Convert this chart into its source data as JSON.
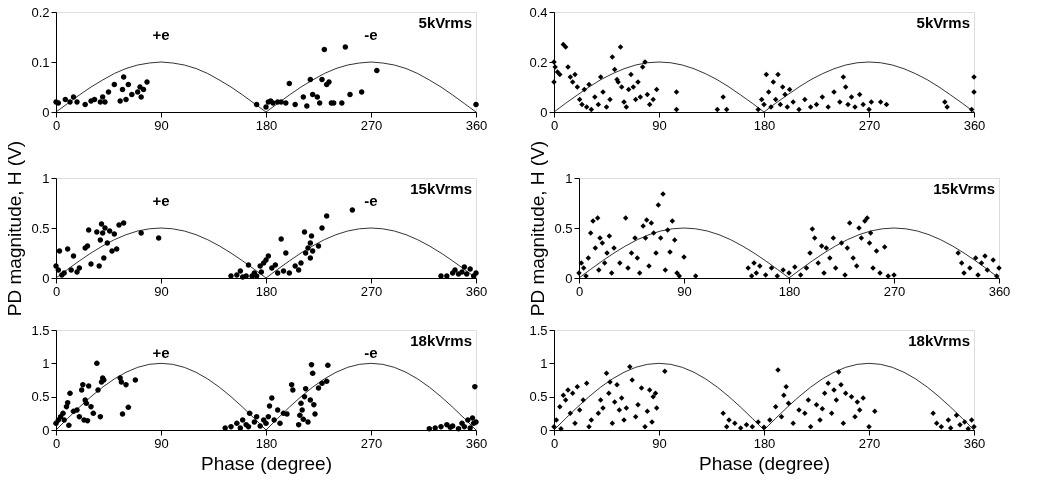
{
  "chart_data": [
    {
      "type": "scatter",
      "xlim": [
        0,
        360
      ],
      "xticks": [
        0,
        90,
        180,
        270,
        360
      ],
      "ylim": [
        0,
        0.2
      ],
      "yticks": [
        0,
        0.1,
        0.2
      ],
      "annotations": [
        "5kVrms",
        "+e",
        "-e"
      ],
      "series": [
        {
          "type": "scatter",
          "marker": "circle",
          "color": "#000000",
          "x": [
            0,
            2,
            8,
            12,
            15,
            18,
            25,
            30,
            33,
            38,
            40,
            42,
            45,
            50,
            55,
            57,
            58,
            60,
            62,
            65,
            70,
            72,
            73,
            75,
            78,
            172,
            180,
            182,
            184,
            186,
            190,
            193,
            197,
            200,
            205,
            212,
            215,
            218,
            220,
            224,
            226,
            228,
            232,
            234,
            230,
            236,
            238,
            245,
            248,
            252,
            262,
            275,
            360
          ],
          "values": [
            0.02,
            0.018,
            0.025,
            0.02,
            0.03,
            0.02,
            0.015,
            0.022,
            0.025,
            0.02,
            0.03,
            0.02,
            0.04,
            0.055,
            0.022,
            0.045,
            0.07,
            0.025,
            0.055,
            0.035,
            0.04,
            0.05,
            0.03,
            0.045,
            0.06,
            0.015,
            0.01,
            0.02,
            0.022,
            0.018,
            0.02,
            0.02,
            0.018,
            0.057,
            0.015,
            0.03,
            0.012,
            0.065,
            0.035,
            0.03,
            0.018,
            0.065,
            0.055,
            0.06,
            0.125,
            0.018,
            0.018,
            0.018,
            0.13,
            0.035,
            0.04,
            0.083,
            0.015
          ]
        },
        {
          "type": "line",
          "color": "#000000",
          "x": [
            0,
            10,
            20,
            30,
            40,
            50,
            60,
            70,
            80,
            90,
            100,
            110,
            120,
            130,
            140,
            150,
            160,
            170,
            180,
            190,
            200,
            210,
            220,
            230,
            240,
            250,
            260,
            270,
            280,
            290,
            300,
            310,
            320,
            330,
            340,
            350,
            360
          ],
          "values": [
            0,
            0.017,
            0.034,
            0.05,
            0.064,
            0.077,
            0.087,
            0.094,
            0.098,
            0.1,
            0.098,
            0.094,
            0.087,
            0.077,
            0.064,
            0.05,
            0.034,
            0.017,
            0,
            0.017,
            0.034,
            0.05,
            0.064,
            0.077,
            0.087,
            0.094,
            0.098,
            0.1,
            0.098,
            0.094,
            0.087,
            0.077,
            0.064,
            0.05,
            0.034,
            0.017,
            0
          ]
        }
      ]
    },
    {
      "type": "scatter",
      "xlim": [
        0,
        360
      ],
      "xticks": [
        0,
        90,
        180,
        270,
        360
      ],
      "ylim": [
        0,
        0.4
      ],
      "yticks": [
        0,
        0.2,
        0.4
      ],
      "annotations": [
        "5kVrms"
      ],
      "series": [
        {
          "type": "scatter",
          "marker": "diamond",
          "color": "#000000",
          "x": [
            0,
            0,
            1,
            3,
            5,
            8,
            10,
            12,
            14,
            16,
            18,
            20,
            22,
            24,
            26,
            28,
            30,
            32,
            35,
            38,
            40,
            42,
            45,
            48,
            50,
            52,
            54,
            55,
            57,
            58,
            60,
            62,
            64,
            66,
            68,
            70,
            72,
            74,
            76,
            78,
            80,
            82,
            85,
            88,
            105,
            105,
            145,
            140,
            148,
            175,
            178,
            180,
            182,
            184,
            186,
            188,
            190,
            192,
            194,
            196,
            198,
            200,
            202,
            205,
            210,
            215,
            220,
            225,
            230,
            235,
            240,
            245,
            248,
            250,
            252,
            255,
            258,
            262,
            265,
            270,
            272,
            280,
            285,
            335,
            337,
            360,
            360,
            358
          ],
          "values": [
            0.2,
            0.12,
            0.18,
            0.16,
            0.15,
            0.27,
            0.26,
            0.18,
            0.14,
            0.12,
            0.15,
            0.1,
            0.05,
            0.03,
            0.09,
            0.02,
            0.11,
            0.01,
            0.06,
            0.03,
            0.14,
            0.08,
            0.02,
            0.05,
            0.22,
            0.17,
            0.13,
            0.12,
            0.26,
            0.1,
            0.04,
            0.02,
            0.09,
            0.15,
            0.1,
            0.05,
            0.12,
            0.06,
            0.18,
            0.2,
            0.07,
            0.03,
            0.05,
            0.09,
            0.08,
            0.01,
            0.06,
            0.01,
            0.01,
            0.01,
            0.05,
            0.03,
            0.15,
            0.08,
            0.02,
            0.12,
            0.05,
            0.15,
            0.03,
            0.1,
            0.07,
            0.02,
            0.09,
            0.04,
            0.01,
            0.05,
            0.02,
            0.03,
            0.06,
            0.02,
            0.08,
            0.04,
            0.14,
            0.1,
            0.03,
            0.06,
            0.02,
            0.07,
            0.03,
            0.01,
            0.04,
            0.04,
            0.03,
            0.04,
            0.02,
            0.14,
            0.08,
            0.01
          ]
        },
        {
          "type": "line",
          "color": "#000000",
          "x": [
            0,
            10,
            20,
            30,
            40,
            50,
            60,
            70,
            80,
            90,
            100,
            110,
            120,
            130,
            140,
            150,
            160,
            170,
            180,
            190,
            200,
            210,
            220,
            230,
            240,
            250,
            260,
            270,
            280,
            290,
            300,
            310,
            320,
            330,
            340,
            350,
            360
          ],
          "values": [
            0,
            0.035,
            0.068,
            0.1,
            0.129,
            0.153,
            0.173,
            0.188,
            0.197,
            0.2,
            0.197,
            0.188,
            0.173,
            0.153,
            0.129,
            0.1,
            0.068,
            0.035,
            0,
            0.035,
            0.068,
            0.1,
            0.129,
            0.153,
            0.173,
            0.188,
            0.197,
            0.2,
            0.197,
            0.188,
            0.173,
            0.153,
            0.129,
            0.1,
            0.068,
            0.035,
            0
          ]
        }
      ]
    },
    {
      "type": "scatter",
      "xlim": [
        0,
        360
      ],
      "xticks": [
        0,
        90,
        180,
        270,
        360
      ],
      "ylim": [
        0,
        1
      ],
      "yticks": [
        0,
        0.5,
        1
      ],
      "ylabel": "PD magnitude, H (V)",
      "annotations": [
        "15kVrms",
        "+e",
        "-e"
      ],
      "series": [
        {
          "type": "scatter",
          "marker": "circle",
          "color": "#000000",
          "x": [
            0,
            2,
            3,
            5,
            7,
            10,
            13,
            15,
            18,
            20,
            25,
            27,
            28,
            30,
            35,
            37,
            38,
            39,
            40,
            41,
            42,
            44,
            46,
            48,
            50,
            52,
            54,
            58,
            73,
            88,
            150,
            155,
            158,
            160,
            163,
            165,
            168,
            170,
            172,
            175,
            176,
            178,
            180,
            182,
            185,
            188,
            190,
            193,
            195,
            197,
            200,
            205,
            208,
            210,
            213,
            214,
            216,
            218,
            218,
            219,
            220,
            228,
            232,
            225,
            254,
            330,
            335,
            340,
            342,
            345,
            348,
            350,
            352,
            355,
            358,
            360
          ],
          "values": [
            0.12,
            0.08,
            0.27,
            0.03,
            0.05,
            0.29,
            0.08,
            0.22,
            0.06,
            0.1,
            0.3,
            0.32,
            0.48,
            0.14,
            0.46,
            0.12,
            0.38,
            0.54,
            0.45,
            0.2,
            0.5,
            0.35,
            0.47,
            0.27,
            0.44,
            0.29,
            0.53,
            0.55,
            0.45,
            0.4,
            0.02,
            0.03,
            0.07,
            0.01,
            0.02,
            0.13,
            0.02,
            0.05,
            0.02,
            0.12,
            0.06,
            0.15,
            0.18,
            0.22,
            0.1,
            0.13,
            0.05,
            0.39,
            0.07,
            0.25,
            0.05,
            0.12,
            0.08,
            0.15,
            0.46,
            0.25,
            0.3,
            0.35,
            0.2,
            0.42,
            0.27,
            0.5,
            0.62,
            0.32,
            0.68,
            0.02,
            0.02,
            0.05,
            0.08,
            0.04,
            0.06,
            0.11,
            0.04,
            0.09,
            0.02,
            0.05
          ]
        },
        {
          "type": "line",
          "color": "#000000",
          "x": [
            0,
            10,
            20,
            30,
            40,
            50,
            60,
            70,
            80,
            90,
            100,
            110,
            120,
            130,
            140,
            150,
            160,
            170,
            180,
            190,
            200,
            210,
            220,
            230,
            240,
            250,
            260,
            270,
            280,
            290,
            300,
            310,
            320,
            330,
            340,
            350,
            360
          ],
          "values": [
            0,
            0.087,
            0.171,
            0.25,
            0.321,
            0.383,
            0.433,
            0.47,
            0.492,
            0.5,
            0.492,
            0.47,
            0.433,
            0.383,
            0.321,
            0.25,
            0.171,
            0.087,
            0,
            0.087,
            0.171,
            0.25,
            0.321,
            0.383,
            0.433,
            0.47,
            0.492,
            0.5,
            0.492,
            0.47,
            0.433,
            0.383,
            0.321,
            0.25,
            0.171,
            0.087,
            0
          ]
        }
      ]
    },
    {
      "type": "scatter",
      "xlim": [
        0,
        360
      ],
      "xticks": [
        0,
        90,
        180,
        270,
        360
      ],
      "ylim": [
        0,
        1
      ],
      "yticks": [
        0,
        0.5,
        1
      ],
      "ylabel": "PD magnitude, H (V)",
      "annotations": [
        "15kVrms"
      ],
      "series": [
        {
          "type": "scatter",
          "marker": "diamond",
          "color": "#000000",
          "x": [
            0,
            2,
            4,
            6,
            8,
            10,
            12,
            14,
            16,
            17,
            18,
            20,
            22,
            24,
            26,
            28,
            30,
            35,
            40,
            42,
            45,
            48,
            50,
            52,
            55,
            57,
            58,
            60,
            62,
            64,
            66,
            68,
            70,
            72,
            74,
            76,
            78,
            80,
            82,
            84,
            86,
            90,
            100,
            145,
            148,
            150,
            152,
            155,
            160,
            165,
            170,
            175,
            180,
            185,
            190,
            195,
            198,
            200,
            202,
            205,
            208,
            210,
            212,
            215,
            218,
            220,
            225,
            228,
            230,
            232,
            235,
            238,
            240,
            242,
            245,
            247,
            249,
            250,
            252,
            255,
            258,
            262,
            265,
            270,
            325,
            328,
            330,
            335,
            340,
            342,
            345,
            348,
            350,
            355,
            358,
            360
          ],
          "values": [
            0.05,
            0.15,
            0.1,
            0.02,
            0.2,
            0.45,
            0.57,
            0.3,
            0.6,
            0.08,
            0.4,
            0.35,
            0.15,
            0.25,
            0.42,
            0.05,
            0.3,
            0.15,
            0.6,
            0.1,
            0.25,
            0.4,
            0.2,
            0.05,
            0.52,
            0.4,
            0.58,
            0.12,
            0.55,
            0.45,
            0.25,
            0.73,
            0.4,
            0.84,
            0.08,
            0.48,
            0.26,
            0.57,
            0.38,
            0.05,
            0.02,
            0.21,
            0.02,
            0.1,
            0.02,
            0.15,
            0.05,
            0.12,
            0.03,
            0.1,
            0.02,
            0.08,
            0.05,
            0.11,
            0.03,
            0.1,
            0.25,
            0.49,
            0.4,
            0.15,
            0.32,
            0.05,
            0.3,
            0.2,
            0.4,
            0.1,
            0.35,
            0.03,
            0.3,
            0.55,
            0.2,
            0.12,
            0.5,
            0.4,
            0.57,
            0.6,
            0.35,
            0.45,
            0.1,
            0.27,
            0.05,
            0.31,
            0.02,
            0.03,
            0.25,
            0.15,
            0.05,
            0.1,
            0.2,
            0.03,
            0.15,
            0.22,
            0.08,
            0.18,
            0.02,
            0.1
          ]
        },
        {
          "type": "line",
          "color": "#000000",
          "x": [
            0,
            10,
            20,
            30,
            40,
            50,
            60,
            70,
            80,
            90,
            100,
            110,
            120,
            130,
            140,
            150,
            160,
            170,
            180,
            190,
            200,
            210,
            220,
            230,
            240,
            250,
            260,
            270,
            280,
            290,
            300,
            310,
            320,
            330,
            340,
            350,
            360
          ],
          "values": [
            0,
            0.087,
            0.171,
            0.25,
            0.321,
            0.383,
            0.433,
            0.47,
            0.492,
            0.5,
            0.492,
            0.47,
            0.433,
            0.383,
            0.321,
            0.25,
            0.171,
            0.087,
            0,
            0.087,
            0.171,
            0.25,
            0.321,
            0.383,
            0.433,
            0.47,
            0.492,
            0.5,
            0.492,
            0.47,
            0.433,
            0.383,
            0.321,
            0.25,
            0.171,
            0.087,
            0
          ]
        }
      ]
    },
    {
      "type": "scatter",
      "xlim": [
        0,
        360
      ],
      "xticks": [
        0,
        90,
        180,
        270,
        360
      ],
      "ylim": [
        0,
        1.5
      ],
      "yticks": [
        0,
        0.5,
        1,
        1.5
      ],
      "xlabel": "Phase (degree)",
      "annotations": [
        "18kVrms",
        "+e",
        "-e"
      ],
      "series": [
        {
          "type": "scatter",
          "marker": "circle",
          "color": "#000000",
          "x": [
            0,
            2,
            4,
            6,
            7,
            9,
            10,
            11,
            12,
            15,
            18,
            20,
            22,
            23,
            24,
            25,
            26,
            27,
            28,
            30,
            32,
            35,
            36,
            38,
            39,
            40,
            41,
            55,
            56,
            57,
            60,
            62,
            68,
            145,
            150,
            155,
            158,
            160,
            163,
            165,
            166,
            170,
            172,
            175,
            178,
            180,
            182,
            183,
            185,
            187,
            190,
            192,
            195,
            198,
            202,
            203,
            208,
            209,
            210,
            211,
            212,
            213,
            214,
            216,
            218,
            219,
            220,
            221,
            222,
            225,
            228,
            232,
            233,
            320,
            325,
            330,
            335,
            338,
            340,
            345,
            348,
            350,
            353,
            355,
            357,
            358,
            359,
            360
          ],
          "values": [
            0.1,
            0.15,
            0.2,
            0.25,
            0.15,
            0.35,
            0.41,
            0.07,
            0.55,
            0.28,
            0.3,
            0.2,
            0.6,
            0.68,
            0.15,
            0.45,
            0.4,
            0.14,
            0.66,
            0.35,
            0.25,
            1.0,
            0.6,
            0.2,
            0.72,
            0.78,
            0.75,
            0.78,
            0.72,
            0.24,
            0.68,
            0.34,
            0.75,
            0.03,
            0.05,
            0.1,
            0.03,
            0.15,
            0.08,
            0.05,
            0.25,
            0.12,
            0.2,
            0.06,
            0.15,
            0.1,
            0.2,
            0.36,
            0.48,
            0.15,
            0.3,
            0.1,
            0.25,
            0.24,
            0.68,
            0.6,
            0.08,
            0.22,
            0.4,
            0.3,
            0.16,
            0.5,
            0.62,
            0.12,
            0.45,
            0.98,
            0.85,
            0.38,
            0.24,
            0.63,
            0.7,
            0.73,
            0.97,
            0.02,
            0.03,
            0.05,
            0.08,
            0.04,
            0.06,
            0.02,
            0.1,
            0.05,
            0.15,
            0.03,
            0.18,
            0.1,
            0.65,
            0.12
          ]
        },
        {
          "type": "line",
          "color": "#000000",
          "x": [
            0,
            10,
            20,
            30,
            40,
            50,
            60,
            70,
            80,
            90,
            100,
            110,
            120,
            130,
            140,
            150,
            160,
            170,
            180,
            190,
            200,
            210,
            220,
            230,
            240,
            250,
            260,
            270,
            280,
            290,
            300,
            310,
            320,
            330,
            340,
            350,
            360
          ],
          "values": [
            0,
            0.174,
            0.342,
            0.5,
            0.643,
            0.766,
            0.866,
            0.94,
            0.985,
            1,
            0.985,
            0.94,
            0.866,
            0.766,
            0.643,
            0.5,
            0.342,
            0.174,
            0,
            0.174,
            0.342,
            0.5,
            0.643,
            0.766,
            0.866,
            0.94,
            0.985,
            1,
            0.985,
            0.94,
            0.866,
            0.766,
            0.643,
            0.5,
            0.342,
            0.174,
            0
          ]
        }
      ]
    },
    {
      "type": "scatter",
      "xlim": [
        0,
        360
      ],
      "xticks": [
        0,
        90,
        180,
        270,
        360
      ],
      "ylim": [
        0,
        1.5
      ],
      "yticks": [
        0,
        0.5,
        1,
        1.5
      ],
      "xlabel": "Phase (degree)",
      "annotations": [
        "18kVrms"
      ],
      "series": [
        {
          "type": "scatter",
          "marker": "diamond",
          "color": "#000000",
          "x": [
            0,
            2,
            5,
            6,
            8,
            10,
            12,
            14,
            16,
            18,
            20,
            22,
            25,
            28,
            30,
            32,
            38,
            40,
            42,
            45,
            47,
            48,
            50,
            52,
            54,
            56,
            58,
            60,
            62,
            65,
            67,
            70,
            72,
            75,
            78,
            80,
            82,
            84,
            85,
            87,
            88,
            95,
            145,
            148,
            150,
            155,
            160,
            165,
            170,
            175,
            180,
            185,
            190,
            192,
            195,
            197,
            199,
            201,
            205,
            210,
            215,
            218,
            220,
            225,
            228,
            230,
            232,
            235,
            238,
            240,
            242,
            244,
            246,
            248,
            250,
            255,
            258,
            260,
            262,
            265,
            270,
            275,
            325,
            328,
            332,
            338,
            340,
            345,
            348,
            352,
            355,
            358,
            360
          ],
          "values": [
            0.05,
            0.15,
            0.35,
            0.02,
            0.52,
            0.45,
            0.6,
            0.25,
            0.55,
            0.1,
            0.65,
            0.3,
            0.45,
            0.7,
            0.05,
            0.15,
            0.25,
            0.45,
            0.33,
            0.85,
            0.55,
            0.72,
            0.1,
            0.42,
            0.68,
            0.3,
            0.48,
            0.15,
            0.33,
            0.95,
            0.75,
            0.2,
            0.38,
            0.63,
            0.05,
            0.28,
            0.6,
            0.12,
            0.5,
            0.55,
            0.33,
            0.88,
            0.25,
            0.05,
            0.15,
            0.1,
            0.03,
            0.08,
            0.05,
            0.12,
            0.04,
            0.15,
            0.35,
            0.9,
            0.2,
            0.52,
            0.65,
            0.4,
            0.1,
            0.3,
            0.25,
            0.45,
            0.05,
            0.38,
            0.15,
            0.32,
            0.55,
            0.7,
            0.25,
            0.6,
            0.45,
            0.87,
            0.68,
            0.1,
            0.55,
            0.5,
            0.2,
            0.42,
            0.3,
            0.48,
            0.05,
            0.28,
            0.25,
            0.1,
            0.05,
            0.15,
            0.03,
            0.22,
            0.08,
            0.12,
            0.02,
            0.15,
            0.05
          ]
        },
        {
          "type": "line",
          "color": "#000000",
          "x": [
            0,
            10,
            20,
            30,
            40,
            50,
            60,
            70,
            80,
            90,
            100,
            110,
            120,
            130,
            140,
            150,
            160,
            170,
            180,
            190,
            200,
            210,
            220,
            230,
            240,
            250,
            260,
            270,
            280,
            290,
            300,
            310,
            320,
            330,
            340,
            350,
            360
          ],
          "values": [
            0,
            0.174,
            0.342,
            0.5,
            0.643,
            0.766,
            0.866,
            0.94,
            0.985,
            1,
            0.985,
            0.94,
            0.866,
            0.766,
            0.643,
            0.5,
            0.342,
            0.174,
            0,
            0.174,
            0.342,
            0.5,
            0.643,
            0.766,
            0.866,
            0.94,
            0.985,
            1,
            0.985,
            0.94,
            0.866,
            0.766,
            0.643,
            0.5,
            0.342,
            0.174,
            0
          ]
        }
      ]
    }
  ]
}
